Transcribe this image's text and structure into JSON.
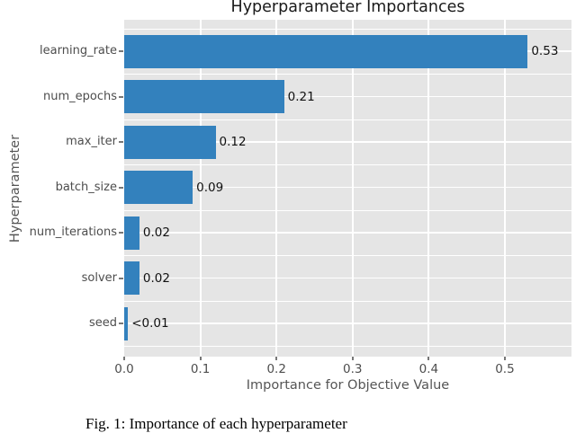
{
  "chart_data": {
    "type": "bar",
    "orientation": "horizontal",
    "title": "Hyperparameter Importances",
    "xlabel": "Importance for Objective Value",
    "ylabel": "Hyperparameter",
    "categories": [
      "learning_rate",
      "num_epochs",
      "max_iter",
      "batch_size",
      "num_iterations",
      "solver",
      "seed"
    ],
    "values": [
      0.53,
      0.21,
      0.12,
      0.09,
      0.02,
      0.02,
      0.005
    ],
    "value_labels": [
      "0.53",
      "0.21",
      "0.12",
      "0.09",
      "0.02",
      "0.02",
      "<0.01"
    ],
    "x_ticks": [
      0.0,
      0.1,
      0.2,
      0.3,
      0.4,
      0.5
    ],
    "x_tick_labels": [
      "0.0",
      "0.1",
      "0.2",
      "0.3",
      "0.4",
      "0.5"
    ],
    "xlim": [
      0,
      0.5875
    ],
    "grid": true,
    "legend": false,
    "colors": {
      "bar": "#3381bd",
      "plot_background": "#e5e5e5",
      "grid": "#ffffff",
      "tick_text": "#4d4d4d",
      "axis_label_text": "#555555",
      "title_text": "#1a1a1a",
      "value_label_text": "#111111"
    }
  },
  "caption": {
    "text": "Fig. 1: Importance of each hyperparameter"
  }
}
